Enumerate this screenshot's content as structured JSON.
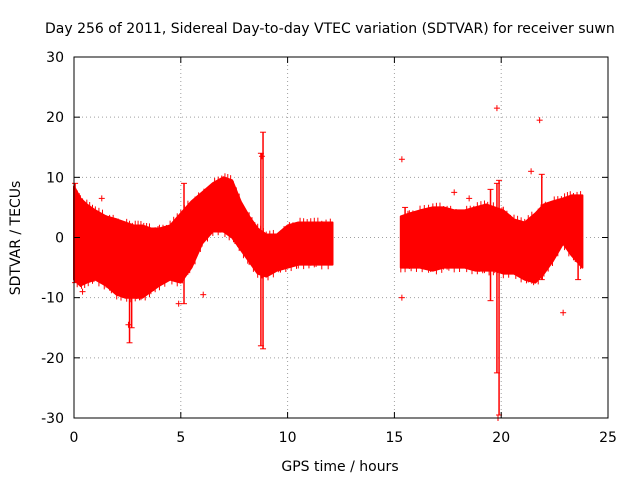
{
  "chart_data": {
    "type": "scatter",
    "title": "Day 256 of 2011, Sidereal Day-to-day VTEC variation (SDTVAR) for receiver suwn",
    "xlabel": "GPS time / hours",
    "ylabel": "SDTVAR / TECUs",
    "xlim": [
      0,
      25
    ],
    "ylim": [
      -30,
      30
    ],
    "xticks": [
      0,
      5,
      10,
      15,
      20,
      25
    ],
    "yticks": [
      -30,
      -20,
      -10,
      0,
      10,
      20,
      30
    ],
    "xtick_labels": [
      "0",
      "5",
      "10",
      "15",
      "20",
      "25"
    ],
    "ytick_labels": [
      "-30",
      "-20",
      "-10",
      "0",
      "10",
      "20",
      "30"
    ],
    "grid": true,
    "series": [
      {
        "name": "SDTVAR",
        "color": "#ff0000",
        "envelope_segments": [
          {
            "x": [
              0.0,
              0.3,
              0.6,
              1.0,
              1.5,
              2.0,
              2.4,
              2.8,
              3.2,
              3.6,
              4.0,
              4.5,
              5.0,
              5.5,
              6.0,
              6.5,
              7.0,
              7.4,
              7.8,
              8.2,
              8.6,
              9.0,
              9.5,
              10.0,
              10.5,
              11.0,
              11.5,
              12.1
            ],
            "upper": [
              8.5,
              6.5,
              5.5,
              4.5,
              3.5,
              3.0,
              2.5,
              2.0,
              2.0,
              1.5,
              1.5,
              2.0,
              4.0,
              6.0,
              7.5,
              9.0,
              10.0,
              9.5,
              6.0,
              3.5,
              1.5,
              0.5,
              0.5,
              2.0,
              2.5,
              2.5,
              2.5,
              2.5
            ],
            "lower": [
              -7.0,
              -8.0,
              -7.5,
              -7.0,
              -8.0,
              -9.5,
              -10.0,
              -10.0,
              -10.0,
              -9.0,
              -8.0,
              -7.0,
              -7.5,
              -5.0,
              -1.0,
              1.0,
              1.0,
              0.0,
              -2.0,
              -4.0,
              -6.0,
              -6.5,
              -5.5,
              -5.0,
              -4.5,
              -4.5,
              -4.5,
              -4.5
            ]
          },
          {
            "x": [
              15.3,
              15.7,
              16.2,
              16.8,
              17.3,
              17.8,
              18.3,
              18.8,
              19.3,
              19.7,
              20.1,
              20.6,
              21.1,
              21.6,
              22.0,
              22.4,
              22.9,
              23.3,
              23.8
            ],
            "upper": [
              3.5,
              4.0,
              4.5,
              5.0,
              5.0,
              4.5,
              4.5,
              5.0,
              5.5,
              5.0,
              4.5,
              3.0,
              2.5,
              4.0,
              5.5,
              6.0,
              6.5,
              7.0,
              7.0
            ],
            "lower": [
              -5.0,
              -5.0,
              -5.0,
              -5.5,
              -5.0,
              -5.0,
              -5.0,
              -5.5,
              -5.5,
              -5.5,
              -6.0,
              -6.0,
              -7.0,
              -7.5,
              -6.0,
              -4.0,
              -1.0,
              -3.0,
              -5.0
            ]
          }
        ],
        "spikes": [
          {
            "x": 0.05,
            "y1": -7.5,
            "y2": 9.0
          },
          {
            "x": 2.6,
            "y1": -17.5,
            "y2": 2.0
          },
          {
            "x": 2.7,
            "y1": -15.0,
            "y2": 1.5
          },
          {
            "x": 5.15,
            "y1": -11.0,
            "y2": 9.0
          },
          {
            "x": 8.75,
            "y1": -18.0,
            "y2": 14.0
          },
          {
            "x": 8.85,
            "y1": -18.5,
            "y2": 17.5
          },
          {
            "x": 15.5,
            "y1": -5.0,
            "y2": 5.0
          },
          {
            "x": 19.5,
            "y1": -10.5,
            "y2": 8.0
          },
          {
            "x": 19.8,
            "y1": -22.5,
            "y2": 9.0
          },
          {
            "x": 19.9,
            "y1": -29.5,
            "y2": 9.5
          },
          {
            "x": 21.9,
            "y1": -7.0,
            "y2": 10.5
          },
          {
            "x": 23.6,
            "y1": -7.0,
            "y2": 7.0
          }
        ],
        "points": [
          {
            "x": 4.9,
            "y": -11.0
          },
          {
            "x": 6.05,
            "y": -9.5
          },
          {
            "x": 15.35,
            "y": 13.0
          },
          {
            "x": 15.35,
            "y": -10.0
          },
          {
            "x": 17.8,
            "y": 7.5
          },
          {
            "x": 18.5,
            "y": 6.5
          },
          {
            "x": 19.8,
            "y": 21.5
          },
          {
            "x": 19.85,
            "y": -30.0
          },
          {
            "x": 21.8,
            "y": 19.5
          },
          {
            "x": 22.9,
            "y": -12.5
          },
          {
            "x": 21.4,
            "y": 11.0
          },
          {
            "x": 0.4,
            "y": -9.0
          },
          {
            "x": 1.3,
            "y": 6.5
          },
          {
            "x": 2.55,
            "y": -14.5
          },
          {
            "x": 8.8,
            "y": 13.5
          }
        ]
      }
    ]
  }
}
